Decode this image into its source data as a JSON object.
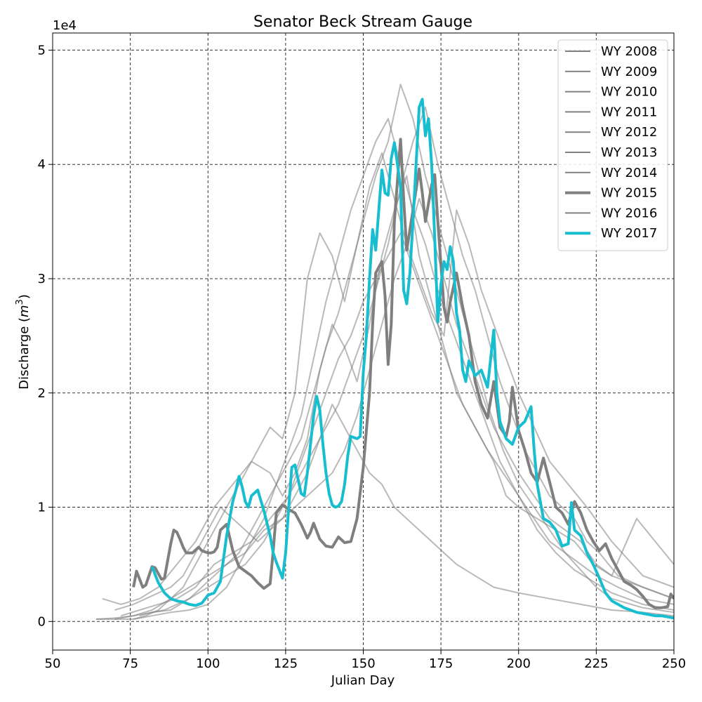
{
  "chart_data": {
    "type": "line",
    "title": "Senator Beck Stream Gauge",
    "xlabel": "Julian Day",
    "ylabel_main": "Discharge (",
    "ylabel_unit": "m",
    "ylabel_sup": "3",
    "ylabel_close": ")",
    "y_offset_label": "1e4",
    "xlim": [
      50,
      250
    ],
    "ylim": [
      -0.25,
      5.15
    ],
    "x_ticks": [
      50,
      75,
      100,
      125,
      150,
      175,
      200,
      225,
      250
    ],
    "y_ticks": [
      0,
      1,
      2,
      3,
      4,
      5
    ],
    "grid": true,
    "legend_position": "top-right",
    "colors": {
      "background_series": "#808080",
      "highlight_2015": "#7f7f7f",
      "highlight_2017": "#17becf",
      "grid": "#333333"
    },
    "series": [
      {
        "name": "WY 2008",
        "style": "background",
        "x": [
          64,
          70,
          76,
          82,
          88,
          94,
          100,
          106,
          112,
          118,
          122,
          126,
          130,
          134,
          138,
          142,
          146,
          150,
          154,
          158,
          162,
          166,
          170,
          174,
          178,
          182,
          186,
          190,
          195,
          200,
          205,
          210,
          215,
          220,
          225,
          230,
          240,
          250
        ],
        "y": [
          0.02,
          0.02,
          0.02,
          0.05,
          0.08,
          0.1,
          0.15,
          0.3,
          0.6,
          0.9,
          1.2,
          1.4,
          1.6,
          2.0,
          2.4,
          2.7,
          3.1,
          3.5,
          3.9,
          4.2,
          4.7,
          4.4,
          3.9,
          3.5,
          3.1,
          2.7,
          2.3,
          1.9,
          1.5,
          1.2,
          1.0,
          0.8,
          0.6,
          0.45,
          0.3,
          0.2,
          0.12,
          0.08
        ]
      },
      {
        "name": "WY 2009",
        "style": "background",
        "x": [
          66,
          72,
          78,
          84,
          90,
          96,
          102,
          108,
          114,
          120,
          124,
          128,
          132,
          136,
          140,
          144,
          148,
          152,
          156,
          160,
          164,
          168,
          172,
          176,
          180,
          184,
          188,
          192,
          196,
          200,
          206,
          212,
          218,
          224,
          230,
          240,
          250
        ],
        "y": [
          0.2,
          0.15,
          0.2,
          0.3,
          0.5,
          0.7,
          1.0,
          1.2,
          1.4,
          1.3,
          1.1,
          1.3,
          1.6,
          2.2,
          2.6,
          2.4,
          2.1,
          2.6,
          3.2,
          3.6,
          3.9,
          3.2,
          2.8,
          2.4,
          2.0,
          1.8,
          1.6,
          1.4,
          1.1,
          1.0,
          0.9,
          0.8,
          0.7,
          0.5,
          0.4,
          0.3,
          0.2
        ]
      },
      {
        "name": "WY 2010",
        "style": "background",
        "x": [
          70,
          76,
          82,
          88,
          94,
          100,
          106,
          112,
          118,
          124,
          128,
          132,
          136,
          140,
          144,
          148,
          152,
          156,
          160,
          164,
          168,
          172,
          176,
          180,
          184,
          188,
          192,
          196,
          200,
          205,
          210,
          215,
          220,
          225,
          230,
          238,
          244,
          250
        ],
        "y": [
          0.02,
          0.05,
          0.1,
          0.2,
          0.3,
          0.4,
          0.5,
          0.6,
          0.8,
          0.9,
          1.0,
          1.1,
          1.2,
          1.3,
          1.5,
          1.8,
          2.2,
          2.6,
          3.0,
          3.3,
          3.7,
          3.4,
          3.0,
          2.6,
          2.3,
          2.0,
          1.7,
          1.5,
          1.3,
          1.1,
          0.9,
          0.8,
          0.7,
          0.5,
          0.4,
          0.9,
          0.7,
          0.5
        ]
      },
      {
        "name": "WY 2011",
        "style": "background",
        "x": [
          72,
          78,
          84,
          90,
          96,
          102,
          108,
          114,
          120,
          126,
          130,
          134,
          138,
          142,
          146,
          150,
          154,
          158,
          162,
          166,
          170,
          174,
          178,
          182,
          186,
          190,
          194,
          198,
          202,
          206,
          210,
          214,
          218,
          222,
          226,
          232,
          240,
          250
        ],
        "y": [
          0.05,
          0.1,
          0.15,
          0.2,
          0.3,
          0.5,
          0.6,
          0.7,
          0.9,
          1.1,
          1.3,
          1.5,
          1.7,
          1.9,
          2.2,
          2.5,
          2.9,
          3.3,
          3.8,
          4.2,
          4.5,
          4.0,
          3.6,
          3.2,
          2.9,
          2.5,
          2.1,
          1.8,
          1.5,
          1.3,
          1.1,
          1.0,
          0.9,
          0.7,
          0.6,
          0.4,
          0.3,
          0.2
        ]
      },
      {
        "name": "WY 2012",
        "style": "background",
        "x": [
          70,
          76,
          80,
          84,
          88,
          92,
          96,
          100,
          104,
          108,
          112,
          116,
          120,
          124,
          128,
          132,
          136,
          140,
          144,
          148,
          152,
          156,
          160,
          164,
          168,
          172,
          176,
          180,
          186,
          192,
          200,
          210,
          220,
          230,
          240,
          250
        ],
        "y": [
          0.1,
          0.15,
          0.2,
          0.25,
          0.3,
          0.4,
          0.6,
          0.8,
          1.0,
          0.9,
          0.8,
          0.7,
          0.8,
          0.9,
          1.1,
          1.3,
          1.6,
          1.9,
          1.7,
          1.5,
          1.3,
          1.2,
          1.0,
          0.9,
          0.8,
          0.7,
          0.6,
          0.5,
          0.4,
          0.3,
          0.25,
          0.2,
          0.15,
          0.1,
          0.08,
          0.05
        ]
      },
      {
        "name": "WY 2013",
        "style": "background",
        "x": [
          64,
          70,
          76,
          82,
          88,
          94,
          100,
          106,
          112,
          118,
          122,
          126,
          130,
          134,
          138,
          142,
          146,
          150,
          154,
          158,
          162,
          166,
          170,
          174,
          178,
          182,
          186,
          190,
          195,
          200,
          205,
          210,
          215,
          220,
          225,
          232,
          240,
          250
        ],
        "y": [
          0.02,
          0.03,
          0.05,
          0.08,
          0.1,
          0.2,
          0.3,
          0.4,
          0.5,
          0.7,
          0.9,
          1.1,
          1.4,
          1.7,
          2.0,
          2.3,
          2.5,
          2.8,
          3.0,
          3.2,
          3.4,
          3.1,
          2.8,
          2.5,
          2.2,
          1.9,
          1.7,
          1.5,
          1.3,
          1.1,
          0.9,
          0.7,
          0.6,
          0.5,
          0.4,
          0.3,
          0.2,
          0.15
        ]
      },
      {
        "name": "WY 2014",
        "style": "background",
        "x": [
          76,
          80,
          84,
          88,
          92,
          96,
          100,
          104,
          108,
          112,
          116,
          120,
          124,
          128,
          132,
          136,
          140,
          144,
          148,
          152,
          156,
          160,
          164,
          168,
          172,
          176,
          180,
          184,
          188,
          192,
          196,
          200,
          205,
          210,
          216,
          222,
          230,
          240,
          250
        ],
        "y": [
          0.02,
          0.05,
          0.1,
          0.2,
          0.3,
          0.5,
          0.7,
          0.9,
          1.1,
          1.3,
          1.5,
          1.7,
          1.6,
          2.0,
          3.0,
          3.4,
          3.2,
          2.8,
          3.3,
          3.8,
          4.1,
          3.7,
          3.3,
          3.0,
          2.7,
          2.5,
          3.6,
          3.3,
          2.9,
          2.6,
          2.3,
          2.0,
          1.7,
          1.4,
          1.2,
          1.0,
          0.7,
          0.4,
          0.3
        ]
      },
      {
        "name": "WY 2015",
        "style": "highlight2015",
        "x": [
          76,
          77,
          79,
          80,
          82,
          83,
          85,
          86,
          88,
          89,
          90,
          91,
          92,
          93,
          94,
          95,
          97,
          98,
          100,
          101,
          102,
          103,
          104,
          106,
          108,
          110,
          112,
          114,
          116,
          118,
          120,
          121,
          122,
          124,
          126,
          128,
          130,
          132,
          133,
          134,
          136,
          138,
          140,
          142,
          144,
          146,
          148,
          150,
          152,
          153,
          154,
          156,
          157,
          158,
          159,
          160,
          162,
          163,
          164,
          166,
          168,
          169,
          170,
          172,
          173,
          174,
          176,
          177,
          178,
          180,
          182,
          184,
          186,
          188,
          190,
          192,
          194,
          196,
          197,
          198,
          200,
          202,
          204,
          206,
          208,
          210,
          212,
          214,
          216,
          218,
          220,
          222,
          224,
          226,
          228,
          230,
          232,
          234,
          236,
          238,
          240,
          242,
          244,
          246,
          248,
          249,
          250
        ],
        "y": [
          0.3,
          0.44,
          0.3,
          0.32,
          0.48,
          0.47,
          0.37,
          0.38,
          0.68,
          0.8,
          0.78,
          0.72,
          0.65,
          0.6,
          0.6,
          0.6,
          0.65,
          0.62,
          0.6,
          0.6,
          0.61,
          0.65,
          0.8,
          0.85,
          0.62,
          0.48,
          0.44,
          0.4,
          0.34,
          0.29,
          0.33,
          0.62,
          0.95,
          1.02,
          0.98,
          0.95,
          0.85,
          0.73,
          0.78,
          0.86,
          0.72,
          0.66,
          0.65,
          0.74,
          0.69,
          0.7,
          0.9,
          1.35,
          2.0,
          2.6,
          3.05,
          3.15,
          2.85,
          2.25,
          2.6,
          3.5,
          4.22,
          3.7,
          3.25,
          3.6,
          3.96,
          3.75,
          3.5,
          3.82,
          3.91,
          3.5,
          2.75,
          2.62,
          2.8,
          3.05,
          2.75,
          2.5,
          2.1,
          1.9,
          1.78,
          2.1,
          1.7,
          1.62,
          1.75,
          2.05,
          1.67,
          1.5,
          1.3,
          1.22,
          1.43,
          1.22,
          1.0,
          0.95,
          0.85,
          1.05,
          0.95,
          0.8,
          0.7,
          0.62,
          0.68,
          0.55,
          0.45,
          0.35,
          0.32,
          0.28,
          0.22,
          0.15,
          0.12,
          0.12,
          0.13,
          0.24,
          0.2
        ]
      },
      {
        "name": "WY 2016",
        "style": "background",
        "x": [
          78,
          82,
          86,
          90,
          94,
          98,
          102,
          106,
          110,
          114,
          118,
          122,
          126,
          130,
          134,
          138,
          142,
          146,
          150,
          154,
          158,
          162,
          166,
          170,
          174,
          178,
          182,
          186,
          190,
          194,
          198,
          202,
          206,
          212,
          218,
          224,
          230,
          240,
          250
        ],
        "y": [
          0.05,
          0.08,
          0.1,
          0.15,
          0.2,
          0.3,
          0.4,
          0.5,
          0.6,
          0.8,
          1.0,
          1.2,
          1.5,
          1.8,
          2.3,
          2.8,
          3.2,
          3.6,
          3.9,
          4.2,
          4.4,
          4.0,
          3.6,
          3.3,
          2.9,
          2.6,
          2.3,
          2.0,
          1.7,
          1.4,
          1.2,
          1.0,
          0.8,
          0.6,
          0.45,
          0.35,
          0.25,
          0.15,
          0.1
        ]
      },
      {
        "name": "WY 2017",
        "style": "highlight2017",
        "x": [
          82,
          84,
          86,
          88,
          90,
          92,
          94,
          96,
          98,
          100,
          102,
          104,
          106,
          108,
          109,
          110,
          111,
          112,
          113,
          114,
          116,
          118,
          120,
          121,
          122,
          123,
          124,
          125,
          126,
          127,
          128,
          130,
          131,
          132,
          133,
          134,
          135,
          136,
          137,
          138,
          139,
          140,
          141,
          142,
          143,
          144,
          145,
          146,
          148,
          149,
          150,
          151,
          152,
          153,
          154,
          155,
          156,
          157,
          158,
          159,
          160,
          161,
          162,
          163,
          164,
          165,
          166,
          167,
          168,
          169,
          170,
          171,
          172,
          173,
          174,
          175,
          176,
          177,
          178,
          179,
          180,
          181,
          182,
          183,
          184,
          186,
          188,
          190,
          192,
          193,
          194,
          196,
          198,
          200,
          202,
          204,
          205,
          206,
          208,
          210,
          212,
          214,
          216,
          217,
          218,
          220,
          222,
          224,
          226,
          228,
          230,
          232,
          234,
          236,
          238,
          240,
          242,
          244,
          246,
          248,
          250
        ],
        "y": [
          0.48,
          0.34,
          0.25,
          0.2,
          0.18,
          0.17,
          0.15,
          0.14,
          0.16,
          0.23,
          0.25,
          0.35,
          0.75,
          1.05,
          1.15,
          1.27,
          1.18,
          1.05,
          1.0,
          1.1,
          1.15,
          0.97,
          0.75,
          0.6,
          0.52,
          0.45,
          0.38,
          0.6,
          1.0,
          1.35,
          1.37,
          1.12,
          1.1,
          1.3,
          1.55,
          1.8,
          1.97,
          1.85,
          1.55,
          1.3,
          1.12,
          1.02,
          1.0,
          1.01,
          1.05,
          1.2,
          1.45,
          1.62,
          1.6,
          1.62,
          2.18,
          2.5,
          3.0,
          3.43,
          3.25,
          3.6,
          3.95,
          3.75,
          3.73,
          4.05,
          4.19,
          4.0,
          3.8,
          2.9,
          2.78,
          3.05,
          3.5,
          4.0,
          4.5,
          4.57,
          4.25,
          4.4,
          4.0,
          3.35,
          2.62,
          2.95,
          3.15,
          3.08,
          3.28,
          3.15,
          2.7,
          2.55,
          2.2,
          2.1,
          2.28,
          2.15,
          2.2,
          2.05,
          2.55,
          2.0,
          1.75,
          1.6,
          1.55,
          1.7,
          1.75,
          1.88,
          1.5,
          1.2,
          0.9,
          0.87,
          0.8,
          0.66,
          0.68,
          1.04,
          0.8,
          0.75,
          0.6,
          0.5,
          0.38,
          0.25,
          0.18,
          0.15,
          0.12,
          0.1,
          0.08,
          0.07,
          0.06,
          0.05,
          0.05,
          0.04,
          0.03
        ]
      }
    ]
  }
}
